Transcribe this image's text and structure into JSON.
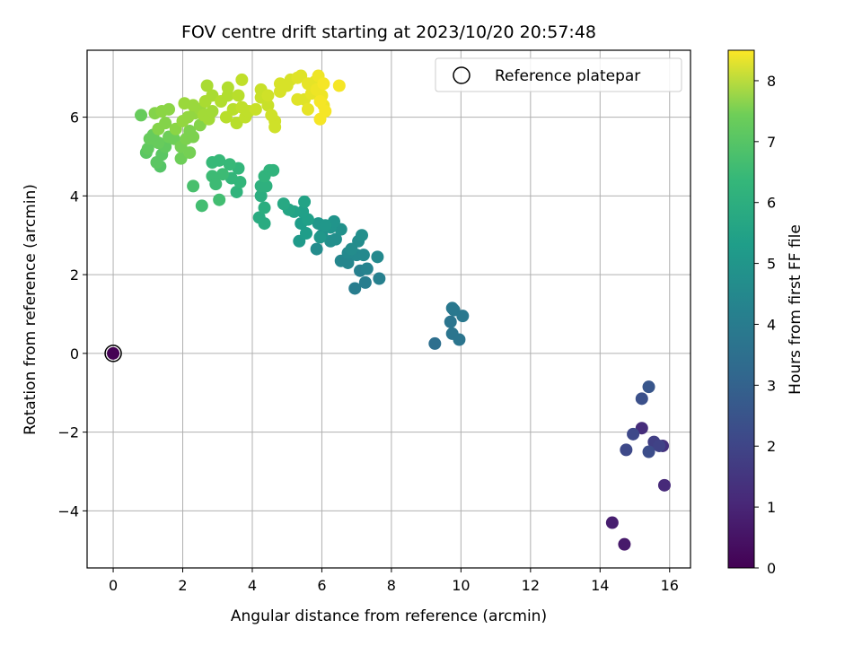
{
  "chart_data": {
    "type": "scatter",
    "title": "FOV centre drift starting at 2023/10/20 20:57:48",
    "xlabel": "Angular distance from reference (arcmin)",
    "ylabel": "Rotation from reference (arcmin)",
    "xlim": [
      -0.75,
      16.6
    ],
    "ylim": [
      -5.45,
      7.7
    ],
    "xticks": [
      0,
      2,
      4,
      6,
      8,
      10,
      12,
      14,
      16
    ],
    "yticks": [
      -4,
      -2,
      0,
      2,
      4,
      6
    ],
    "xtick_labels": [
      "0",
      "2",
      "4",
      "6",
      "8",
      "10",
      "12",
      "14",
      "16"
    ],
    "ytick_labels": [
      "−4",
      "−2",
      "0",
      "2",
      "4",
      "6"
    ],
    "grid": true,
    "legend": {
      "position": "top-right",
      "entries": [
        "Reference platepar"
      ]
    },
    "colorbar": {
      "label": "Hours from first FF file",
      "colormap": "viridis",
      "range": [
        0,
        8.5
      ],
      "ticks": [
        0,
        1,
        2,
        3,
        4,
        5,
        6,
        7,
        8
      ],
      "tick_labels": [
        "0",
        "1",
        "2",
        "3",
        "4",
        "5",
        "6",
        "7",
        "8"
      ]
    },
    "reference": {
      "name": "Reference platepar",
      "x": 0,
      "y": 0,
      "hours": 0
    },
    "points": [
      {
        "x": 14.7,
        "y": -4.85,
        "h": 0.6
      },
      {
        "x": 14.35,
        "y": -4.3,
        "h": 0.7
      },
      {
        "x": 15.85,
        "y": -3.35,
        "h": 1.0
      },
      {
        "x": 15.2,
        "y": -1.9,
        "h": 1.1
      },
      {
        "x": 15.8,
        "y": -2.35,
        "h": 1.2
      },
      {
        "x": 15.55,
        "y": -2.25,
        "h": 1.6
      },
      {
        "x": 15.7,
        "y": -2.35,
        "h": 1.7
      },
      {
        "x": 14.95,
        "y": -2.05,
        "h": 1.9
      },
      {
        "x": 14.75,
        "y": -2.45,
        "h": 1.9
      },
      {
        "x": 15.4,
        "y": -2.5,
        "h": 2.0
      },
      {
        "x": 15.2,
        "y": -1.15,
        "h": 2.1
      },
      {
        "x": 15.4,
        "y": -0.85,
        "h": 2.3
      },
      {
        "x": 9.25,
        "y": 0.25,
        "h": 3.1
      },
      {
        "x": 9.7,
        "y": 0.8,
        "h": 3.3
      },
      {
        "x": 9.75,
        "y": 0.5,
        "h": 3.3
      },
      {
        "x": 9.95,
        "y": 0.35,
        "h": 3.3
      },
      {
        "x": 9.8,
        "y": 1.1,
        "h": 3.4
      },
      {
        "x": 10.05,
        "y": 0.95,
        "h": 3.4
      },
      {
        "x": 9.75,
        "y": 1.15,
        "h": 3.4
      },
      {
        "x": 6.95,
        "y": 1.65,
        "h": 3.6
      },
      {
        "x": 7.25,
        "y": 1.8,
        "h": 3.6
      },
      {
        "x": 7.65,
        "y": 1.9,
        "h": 3.7
      },
      {
        "x": 7.1,
        "y": 2.1,
        "h": 3.7
      },
      {
        "x": 7.3,
        "y": 2.15,
        "h": 3.8
      },
      {
        "x": 6.75,
        "y": 2.3,
        "h": 3.9
      },
      {
        "x": 6.55,
        "y": 2.35,
        "h": 3.9
      },
      {
        "x": 7.6,
        "y": 2.45,
        "h": 4.0
      },
      {
        "x": 7.0,
        "y": 2.5,
        "h": 4.0
      },
      {
        "x": 6.75,
        "y": 2.55,
        "h": 4.0
      },
      {
        "x": 7.2,
        "y": 2.5,
        "h": 4.0
      },
      {
        "x": 6.85,
        "y": 2.65,
        "h": 4.1
      },
      {
        "x": 5.85,
        "y": 2.65,
        "h": 4.1
      },
      {
        "x": 7.05,
        "y": 2.85,
        "h": 4.1
      },
      {
        "x": 7.15,
        "y": 3.0,
        "h": 4.2
      },
      {
        "x": 6.25,
        "y": 2.85,
        "h": 4.2
      },
      {
        "x": 6.4,
        "y": 2.9,
        "h": 4.2
      },
      {
        "x": 6.55,
        "y": 3.15,
        "h": 4.3
      },
      {
        "x": 6.0,
        "y": 3.0,
        "h": 4.3
      },
      {
        "x": 6.25,
        "y": 3.2,
        "h": 4.4
      },
      {
        "x": 6.35,
        "y": 3.35,
        "h": 4.4
      },
      {
        "x": 5.9,
        "y": 3.3,
        "h": 4.5
      },
      {
        "x": 6.1,
        "y": 3.25,
        "h": 4.5
      },
      {
        "x": 5.95,
        "y": 2.95,
        "h": 4.5
      },
      {
        "x": 5.35,
        "y": 2.85,
        "h": 4.6
      },
      {
        "x": 5.55,
        "y": 3.05,
        "h": 4.7
      },
      {
        "x": 5.4,
        "y": 3.3,
        "h": 4.7
      },
      {
        "x": 5.6,
        "y": 3.4,
        "h": 4.8
      },
      {
        "x": 5.45,
        "y": 3.6,
        "h": 4.8
      },
      {
        "x": 5.2,
        "y": 3.6,
        "h": 4.9
      },
      {
        "x": 5.5,
        "y": 3.85,
        "h": 4.9
      },
      {
        "x": 5.05,
        "y": 3.65,
        "h": 5.0
      },
      {
        "x": 4.9,
        "y": 3.8,
        "h": 5.1
      },
      {
        "x": 4.35,
        "y": 3.3,
        "h": 5.2
      },
      {
        "x": 4.2,
        "y": 3.45,
        "h": 5.2
      },
      {
        "x": 4.35,
        "y": 3.7,
        "h": 5.3
      },
      {
        "x": 4.25,
        "y": 4.0,
        "h": 5.3
      },
      {
        "x": 4.25,
        "y": 4.25,
        "h": 5.4
      },
      {
        "x": 4.4,
        "y": 4.25,
        "h": 5.4
      },
      {
        "x": 4.35,
        "y": 4.5,
        "h": 5.5
      },
      {
        "x": 4.5,
        "y": 4.65,
        "h": 5.5
      },
      {
        "x": 4.6,
        "y": 4.65,
        "h": 5.5
      },
      {
        "x": 3.55,
        "y": 4.1,
        "h": 5.5
      },
      {
        "x": 3.65,
        "y": 4.35,
        "h": 5.6
      },
      {
        "x": 3.4,
        "y": 4.45,
        "h": 5.6
      },
      {
        "x": 3.6,
        "y": 4.7,
        "h": 5.6
      },
      {
        "x": 3.35,
        "y": 4.8,
        "h": 5.7
      },
      {
        "x": 3.05,
        "y": 4.9,
        "h": 5.7
      },
      {
        "x": 2.85,
        "y": 4.85,
        "h": 5.7
      },
      {
        "x": 3.15,
        "y": 4.55,
        "h": 5.8
      },
      {
        "x": 2.85,
        "y": 4.5,
        "h": 5.8
      },
      {
        "x": 2.95,
        "y": 4.3,
        "h": 5.8
      },
      {
        "x": 3.05,
        "y": 3.9,
        "h": 5.9
      },
      {
        "x": 2.55,
        "y": 3.75,
        "h": 5.9
      },
      {
        "x": 2.3,
        "y": 4.25,
        "h": 6.0
      },
      {
        "x": 1.35,
        "y": 4.75,
        "h": 6.2
      },
      {
        "x": 1.25,
        "y": 4.85,
        "h": 6.3
      },
      {
        "x": 1.4,
        "y": 5.05,
        "h": 6.3
      },
      {
        "x": 0.95,
        "y": 5.1,
        "h": 6.3
      },
      {
        "x": 1.0,
        "y": 5.2,
        "h": 6.4
      },
      {
        "x": 1.5,
        "y": 5.25,
        "h": 6.4
      },
      {
        "x": 1.3,
        "y": 5.35,
        "h": 6.5
      },
      {
        "x": 1.05,
        "y": 5.45,
        "h": 6.5
      },
      {
        "x": 1.15,
        "y": 5.55,
        "h": 6.5
      },
      {
        "x": 0.8,
        "y": 6.05,
        "h": 6.5
      },
      {
        "x": 1.6,
        "y": 5.5,
        "h": 6.6
      },
      {
        "x": 1.75,
        "y": 5.45,
        "h": 6.6
      },
      {
        "x": 1.95,
        "y": 4.95,
        "h": 6.6
      },
      {
        "x": 2.2,
        "y": 5.1,
        "h": 6.7
      },
      {
        "x": 1.95,
        "y": 5.25,
        "h": 6.7
      },
      {
        "x": 2.1,
        "y": 5.45,
        "h": 6.8
      },
      {
        "x": 2.3,
        "y": 5.5,
        "h": 6.8
      },
      {
        "x": 2.2,
        "y": 5.65,
        "h": 6.8
      },
      {
        "x": 2.5,
        "y": 5.8,
        "h": 6.9
      },
      {
        "x": 1.3,
        "y": 5.7,
        "h": 6.9
      },
      {
        "x": 1.5,
        "y": 5.85,
        "h": 6.9
      },
      {
        "x": 1.2,
        "y": 6.1,
        "h": 6.9
      },
      {
        "x": 1.4,
        "y": 6.15,
        "h": 7.0
      },
      {
        "x": 1.6,
        "y": 6.2,
        "h": 7.0
      },
      {
        "x": 1.8,
        "y": 5.7,
        "h": 7.0
      },
      {
        "x": 2.0,
        "y": 5.9,
        "h": 7.1
      },
      {
        "x": 2.15,
        "y": 6.0,
        "h": 7.1
      },
      {
        "x": 2.35,
        "y": 6.1,
        "h": 7.1
      },
      {
        "x": 2.5,
        "y": 6.2,
        "h": 7.2
      },
      {
        "x": 2.3,
        "y": 6.3,
        "h": 7.2
      },
      {
        "x": 2.05,
        "y": 6.35,
        "h": 7.2
      },
      {
        "x": 2.6,
        "y": 6.05,
        "h": 7.3
      },
      {
        "x": 2.75,
        "y": 5.95,
        "h": 7.3
      },
      {
        "x": 2.85,
        "y": 6.15,
        "h": 7.3
      },
      {
        "x": 2.65,
        "y": 6.4,
        "h": 7.4
      },
      {
        "x": 2.85,
        "y": 6.55,
        "h": 7.4
      },
      {
        "x": 2.7,
        "y": 6.8,
        "h": 7.4
      },
      {
        "x": 3.1,
        "y": 6.4,
        "h": 7.5
      },
      {
        "x": 3.3,
        "y": 6.55,
        "h": 7.5
      },
      {
        "x": 3.3,
        "y": 6.75,
        "h": 7.5
      },
      {
        "x": 3.6,
        "y": 6.55,
        "h": 7.6
      },
      {
        "x": 3.45,
        "y": 6.2,
        "h": 7.6
      },
      {
        "x": 3.25,
        "y": 6.0,
        "h": 7.6
      },
      {
        "x": 3.55,
        "y": 5.85,
        "h": 7.6
      },
      {
        "x": 3.8,
        "y": 6.0,
        "h": 7.7
      },
      {
        "x": 3.7,
        "y": 6.25,
        "h": 7.7
      },
      {
        "x": 3.9,
        "y": 6.15,
        "h": 7.7
      },
      {
        "x": 3.7,
        "y": 6.95,
        "h": 7.7
      },
      {
        "x": 4.1,
        "y": 6.2,
        "h": 7.8
      },
      {
        "x": 4.25,
        "y": 6.5,
        "h": 7.8
      },
      {
        "x": 4.25,
        "y": 6.7,
        "h": 7.8
      },
      {
        "x": 4.45,
        "y": 6.3,
        "h": 7.8
      },
      {
        "x": 4.45,
        "y": 6.55,
        "h": 7.9
      },
      {
        "x": 4.65,
        "y": 5.9,
        "h": 7.9
      },
      {
        "x": 4.65,
        "y": 5.75,
        "h": 7.9
      },
      {
        "x": 4.55,
        "y": 6.05,
        "h": 7.9
      },
      {
        "x": 4.8,
        "y": 6.65,
        "h": 8.0
      },
      {
        "x": 4.8,
        "y": 6.85,
        "h": 8.0
      },
      {
        "x": 5.0,
        "y": 6.8,
        "h": 8.0
      },
      {
        "x": 5.1,
        "y": 6.95,
        "h": 8.0
      },
      {
        "x": 5.3,
        "y": 7.0,
        "h": 8.1
      },
      {
        "x": 5.4,
        "y": 7.05,
        "h": 8.1
      },
      {
        "x": 5.3,
        "y": 6.45,
        "h": 8.1
      },
      {
        "x": 5.5,
        "y": 6.45,
        "h": 8.1
      },
      {
        "x": 5.6,
        "y": 6.2,
        "h": 8.2
      },
      {
        "x": 5.7,
        "y": 6.6,
        "h": 8.2
      },
      {
        "x": 5.6,
        "y": 6.85,
        "h": 8.2
      },
      {
        "x": 5.8,
        "y": 6.9,
        "h": 8.2
      },
      {
        "x": 5.9,
        "y": 7.05,
        "h": 8.3
      },
      {
        "x": 5.85,
        "y": 6.7,
        "h": 8.3
      },
      {
        "x": 6.0,
        "y": 6.55,
        "h": 8.3
      },
      {
        "x": 6.05,
        "y": 6.3,
        "h": 8.3
      },
      {
        "x": 6.1,
        "y": 6.15,
        "h": 8.4
      },
      {
        "x": 5.95,
        "y": 5.95,
        "h": 8.4
      },
      {
        "x": 6.05,
        "y": 6.85,
        "h": 8.4
      },
      {
        "x": 6.5,
        "y": 6.8,
        "h": 8.4
      },
      {
        "x": 5.95,
        "y": 6.4,
        "h": 8.4
      }
    ]
  }
}
